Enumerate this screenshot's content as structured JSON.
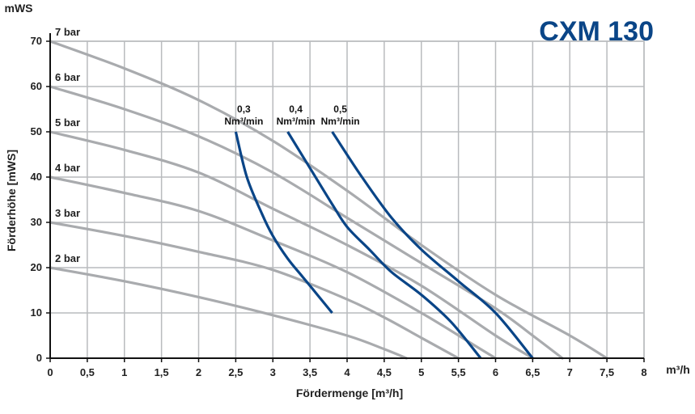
{
  "chart_data": {
    "type": "line",
    "title": "CXM 130",
    "xlabel": "Fördermenge [m³/h]",
    "ylabel": "Förderhöhe [mWS]",
    "x_unit": "m³/h",
    "y_unit": "mWS",
    "xlim": [
      0,
      8
    ],
    "ylim": [
      0,
      70
    ],
    "xticks": [
      "0",
      "0,5",
      "1",
      "1,5",
      "2",
      "2,5",
      "3",
      "3,5",
      "4",
      "4,5",
      "5",
      "5,5",
      "6",
      "6,5",
      "7",
      "7,5",
      "8"
    ],
    "yticks": [
      "0",
      "10",
      "20",
      "30",
      "40",
      "50",
      "60",
      "70"
    ],
    "grid": true,
    "colors": {
      "pressure": "#a9abae",
      "air": "#0a4587",
      "title": "#0a4587",
      "grid": "#b9bbbe"
    },
    "pressure_series": [
      {
        "name": "7 bar",
        "points": [
          [
            0,
            70
          ],
          [
            1,
            64
          ],
          [
            2,
            57
          ],
          [
            3,
            48
          ],
          [
            4,
            37
          ],
          [
            5,
            25
          ],
          [
            6,
            14
          ],
          [
            7,
            5
          ],
          [
            7.5,
            0
          ]
        ]
      },
      {
        "name": "6 bar",
        "points": [
          [
            0,
            60
          ],
          [
            1,
            55
          ],
          [
            2,
            49
          ],
          [
            3,
            41
          ],
          [
            4,
            31
          ],
          [
            5,
            21
          ],
          [
            6,
            11
          ],
          [
            6.5,
            5
          ],
          [
            6.9,
            0
          ]
        ]
      },
      {
        "name": "5 bar",
        "points": [
          [
            0,
            50
          ],
          [
            1,
            46
          ],
          [
            2,
            41
          ],
          [
            3,
            33
          ],
          [
            4,
            25
          ],
          [
            5,
            16
          ],
          [
            6,
            5
          ],
          [
            6.5,
            0
          ]
        ]
      },
      {
        "name": "4 bar",
        "points": [
          [
            0,
            40
          ],
          [
            1,
            36.5
          ],
          [
            2,
            32.5
          ],
          [
            3,
            26
          ],
          [
            4,
            19
          ],
          [
            5,
            10
          ],
          [
            5.7,
            3
          ],
          [
            6,
            0
          ]
        ]
      },
      {
        "name": "3 bar",
        "points": [
          [
            0,
            30
          ],
          [
            1,
            27
          ],
          [
            2,
            23.5
          ],
          [
            3,
            19.5
          ],
          [
            4,
            13
          ],
          [
            4.5,
            9
          ],
          [
            5,
            4.5
          ],
          [
            5.5,
            0
          ]
        ]
      },
      {
        "name": "2 bar",
        "points": [
          [
            0,
            20
          ],
          [
            1,
            17
          ],
          [
            2,
            13.5
          ],
          [
            3,
            9.5
          ],
          [
            4,
            5
          ],
          [
            4.5,
            2
          ],
          [
            4.8,
            0
          ]
        ]
      }
    ],
    "air_series": [
      {
        "label_value": "0,3",
        "label_unit": "Nm³/min",
        "points": [
          [
            2.5,
            50
          ],
          [
            2.65,
            40
          ],
          [
            2.85,
            32
          ],
          [
            3,
            27
          ],
          [
            3.2,
            22
          ],
          [
            3.4,
            18
          ],
          [
            3.6,
            14
          ],
          [
            3.8,
            10
          ]
        ]
      },
      {
        "label_value": "0,4",
        "label_unit": "Nm³/min",
        "points": [
          [
            3.2,
            50
          ],
          [
            3.5,
            42
          ],
          [
            3.8,
            34
          ],
          [
            4,
            29
          ],
          [
            4.3,
            24
          ],
          [
            4.6,
            19
          ],
          [
            5,
            14
          ],
          [
            5.4,
            8
          ],
          [
            5.8,
            0
          ]
        ]
      },
      {
        "name_note": "",
        "label_value": "0,5",
        "label_unit": "Nm³/min",
        "points": [
          [
            3.8,
            50
          ],
          [
            4.2,
            40
          ],
          [
            4.6,
            31
          ],
          [
            5,
            24
          ],
          [
            5.5,
            17
          ],
          [
            6,
            10
          ],
          [
            6.5,
            0
          ]
        ]
      }
    ]
  }
}
